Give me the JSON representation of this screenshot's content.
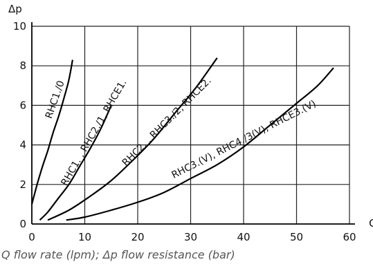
{
  "caption": "Q flow rate (lpm); Δp flow resistance (bar)",
  "chart_data": {
    "type": "line",
    "xlabel": "Q",
    "ylabel": "Δp",
    "xlim": [
      0,
      60
    ],
    "ylim": [
      0,
      10
    ],
    "x_ticks": [
      "0",
      "10",
      "20",
      "30",
      "40",
      "50",
      "60"
    ],
    "y_ticks": [
      "0",
      "2",
      "4",
      "6",
      "8",
      "10"
    ],
    "grid": true,
    "series": [
      {
        "name": "RHC1./0",
        "x": [
          0,
          1,
          2,
          3,
          4,
          5,
          6,
          7,
          7.7
        ],
        "y": [
          1.0,
          2.0,
          2.9,
          3.7,
          4.6,
          5.4,
          6.3,
          7.3,
          8.3
        ]
      },
      {
        "name": "RHC1. , RHC2./1, RHCE1.",
        "x": [
          1.5,
          3,
          5,
          7,
          9,
          11,
          13,
          15
        ],
        "y": [
          0.2,
          0.6,
          1.3,
          2.0,
          2.9,
          3.8,
          4.8,
          6.0
        ]
      },
      {
        "name": "RHC2. , RHC3./2, RHCE2.",
        "x": [
          3,
          7,
          11,
          15,
          19,
          23,
          27,
          31,
          35
        ],
        "y": [
          0.2,
          0.7,
          1.4,
          2.2,
          3.2,
          4.3,
          5.6,
          6.9,
          8.4
        ]
      },
      {
        "name": "RHC3.(V), RHC4./3(V), RHCE3.(V)",
        "x": [
          6.5,
          10,
          15,
          20,
          25,
          30,
          35,
          40,
          45,
          50,
          54,
          57
        ],
        "y": [
          0.2,
          0.35,
          0.7,
          1.1,
          1.6,
          2.3,
          3.0,
          3.9,
          5.0,
          6.1,
          7.0,
          7.9
        ]
      }
    ]
  }
}
